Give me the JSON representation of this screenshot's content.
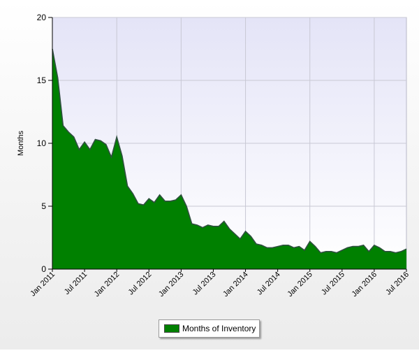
{
  "chart_data": {
    "type": "area",
    "ylabel": "Months",
    "ylim": [
      0,
      20
    ],
    "yticks": [
      0,
      5,
      10,
      15,
      20
    ],
    "xlim": [
      "2011-01",
      "2016-07"
    ],
    "x_tick_labels": [
      "Jan 2011",
      "Jul 2011",
      "Jan 2012",
      "Jul 2012",
      "Jan 2013",
      "Jul 2013",
      "Jan 2014",
      "Jul 2014",
      "Jan 2015",
      "Jul 2015",
      "Jan 2016",
      "Jul 2016"
    ],
    "grid": true,
    "legend_position": "bottom-center",
    "series": [
      {
        "name": "Months of Inventory",
        "color": "#008000",
        "x": [
          "2011-01",
          "2011-02",
          "2011-03",
          "2011-04",
          "2011-05",
          "2011-06",
          "2011-07",
          "2011-08",
          "2011-09",
          "2011-10",
          "2011-11",
          "2011-12",
          "2012-01",
          "2012-02",
          "2012-03",
          "2012-04",
          "2012-05",
          "2012-06",
          "2012-07",
          "2012-08",
          "2012-09",
          "2012-10",
          "2012-11",
          "2012-12",
          "2013-01",
          "2013-02",
          "2013-03",
          "2013-04",
          "2013-05",
          "2013-06",
          "2013-07",
          "2013-08",
          "2013-09",
          "2013-10",
          "2013-11",
          "2013-12",
          "2014-01",
          "2014-02",
          "2014-03",
          "2014-04",
          "2014-05",
          "2014-06",
          "2014-07",
          "2014-08",
          "2014-09",
          "2014-10",
          "2014-11",
          "2014-12",
          "2015-01",
          "2015-02",
          "2015-03",
          "2015-04",
          "2015-05",
          "2015-06",
          "2015-07",
          "2015-08",
          "2015-09",
          "2015-10",
          "2015-11",
          "2015-12",
          "2016-01",
          "2016-02",
          "2016-03",
          "2016-04",
          "2016-05",
          "2016-06",
          "2016-07"
        ],
        "values": [
          17.5,
          15.2,
          11.4,
          10.9,
          10.5,
          9.5,
          10.1,
          9.5,
          10.3,
          10.2,
          9.9,
          8.9,
          10.5,
          9.0,
          6.6,
          6.0,
          5.2,
          5.1,
          5.6,
          5.3,
          5.9,
          5.4,
          5.4,
          5.5,
          5.9,
          5.0,
          3.6,
          3.5,
          3.3,
          3.5,
          3.4,
          3.4,
          3.8,
          3.2,
          2.8,
          2.4,
          3.0,
          2.6,
          2.0,
          1.9,
          1.7,
          1.7,
          1.8,
          1.9,
          1.9,
          1.7,
          1.8,
          1.5,
          2.2,
          1.8,
          1.3,
          1.4,
          1.4,
          1.3,
          1.5,
          1.7,
          1.8,
          1.8,
          1.9,
          1.4,
          1.9,
          1.7,
          1.4,
          1.4,
          1.3,
          1.4,
          1.6
        ]
      }
    ]
  },
  "legend": {
    "label": "Months of Inventory"
  }
}
